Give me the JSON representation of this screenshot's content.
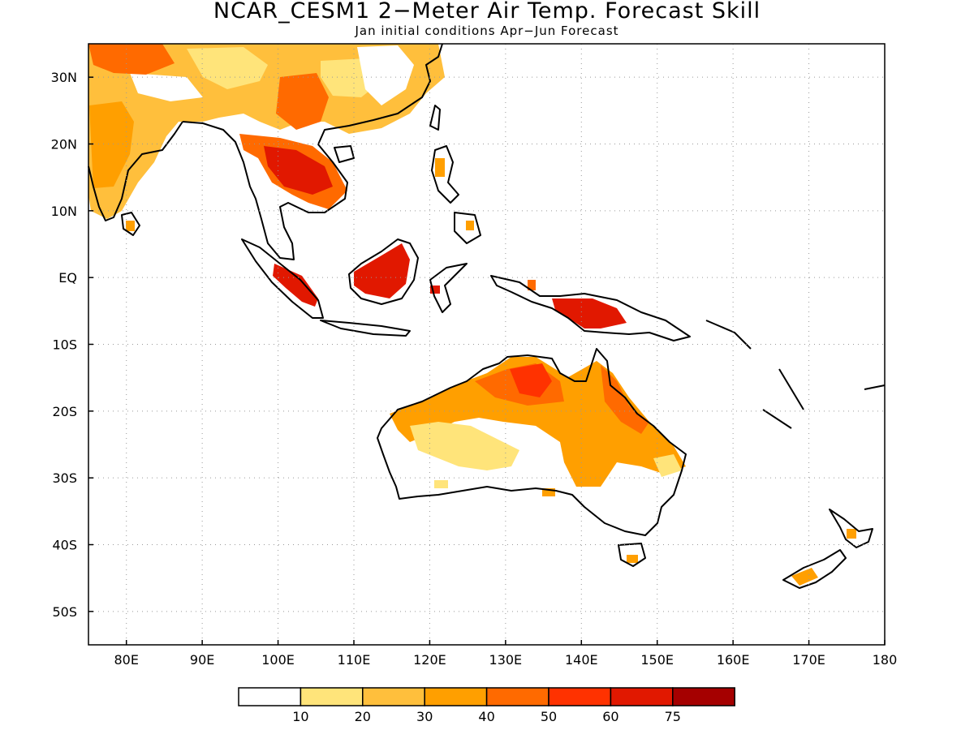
{
  "title": "NCAR_CESM1 2−Meter Air Temp. Forecast Skill",
  "subtitle": "Jan initial conditions  Apr−Jun Forecast",
  "map": {
    "lon_range": [
      75,
      180
    ],
    "lat_range": [
      -55,
      35
    ],
    "lon_ticks": [
      {
        "value": 80,
        "label": "80E"
      },
      {
        "value": 90,
        "label": "90E"
      },
      {
        "value": 100,
        "label": "100E"
      },
      {
        "value": 110,
        "label": "110E"
      },
      {
        "value": 120,
        "label": "120E"
      },
      {
        "value": 130,
        "label": "130E"
      },
      {
        "value": 140,
        "label": "140E"
      },
      {
        "value": 150,
        "label": "150E"
      },
      {
        "value": 160,
        "label": "160E"
      },
      {
        "value": 170,
        "label": "170E"
      },
      {
        "value": 180,
        "label": "180"
      }
    ],
    "lat_ticks": [
      {
        "value": 30,
        "label": "30N"
      },
      {
        "value": 20,
        "label": "20N"
      },
      {
        "value": 10,
        "label": "10N"
      },
      {
        "value": 0,
        "label": "EQ"
      },
      {
        "value": -10,
        "label": "10S"
      },
      {
        "value": -20,
        "label": "20S"
      },
      {
        "value": -30,
        "label": "30S"
      },
      {
        "value": -40,
        "label": "40S"
      },
      {
        "value": -50,
        "label": "50S"
      }
    ],
    "grid": "dotted"
  },
  "legend": {
    "colors": [
      "#ffffff",
      "#ffe47a",
      "#ffbf3c",
      "#ff9f00",
      "#ff6a00",
      "#ff3200",
      "#e11800",
      "#a50000"
    ],
    "labels": [
      "10",
      "20",
      "30",
      "40",
      "50",
      "60",
      "75"
    ]
  }
}
